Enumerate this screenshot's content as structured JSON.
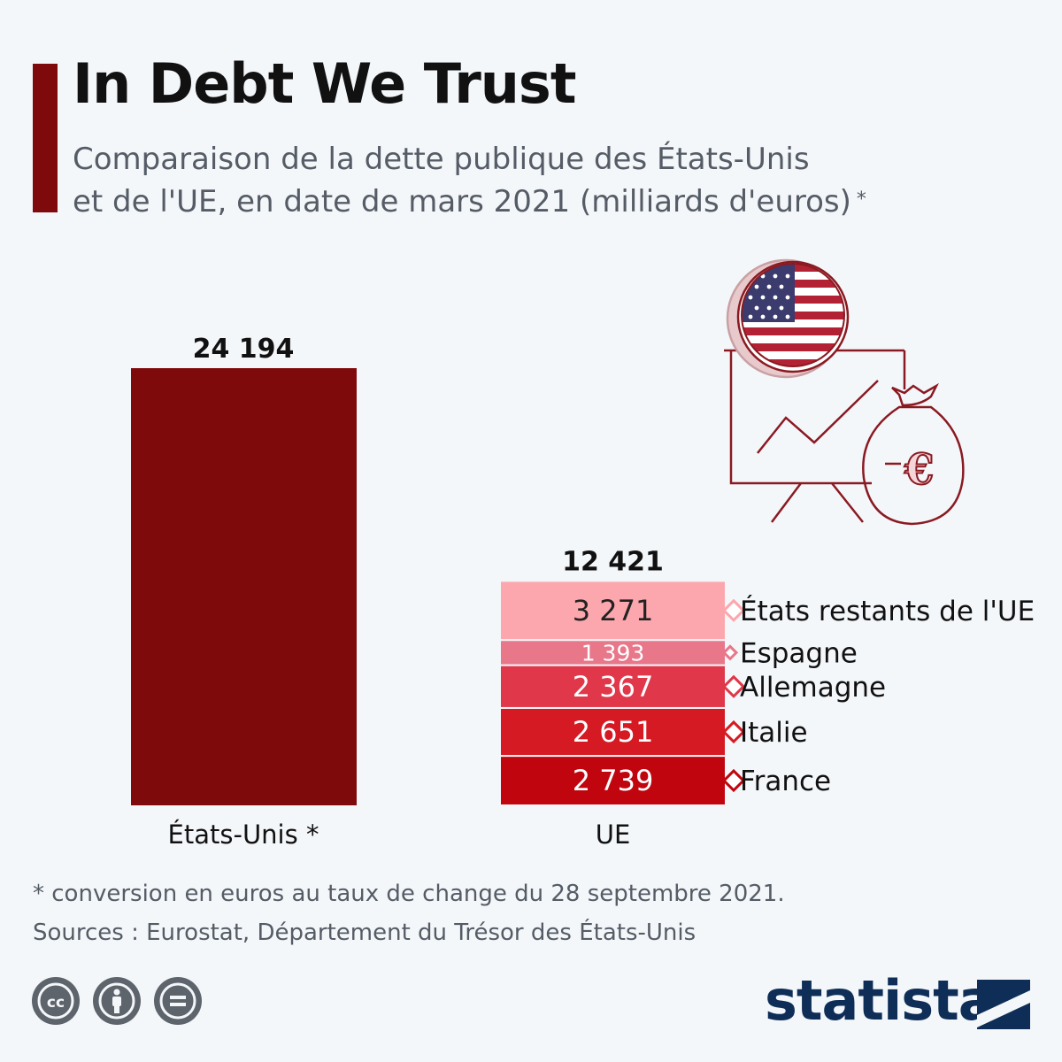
{
  "header": {
    "title": "In Debt We Trust",
    "subtitle_line1": "Comparaison de la dette publique des États-Unis",
    "subtitle_line2": "et de l'UE, en date de mars 2021 (milliards d'euros)",
    "subtitle_star": "*"
  },
  "chart_data": {
    "type": "bar",
    "stacked": true,
    "categories": [
      "États-Unis *",
      "UE"
    ],
    "totals": [
      "24 194",
      "12 421"
    ],
    "us_value": 24194,
    "us_value_label": "24 194",
    "eu_segments": [
      {
        "name": "France",
        "value": 2739,
        "label": "2 739",
        "color": "#c1050f"
      },
      {
        "name": "Italie",
        "value": 2651,
        "label": "2 651",
        "color": "#d51a23"
      },
      {
        "name": "Allemagne",
        "value": 2367,
        "label": "2 367",
        "color": "#e0374a"
      },
      {
        "name": "Espagne",
        "value": 1393,
        "label": "1 393",
        "color": "#e8778a"
      },
      {
        "name": "États restants de l'UE",
        "value": 3271,
        "label": "3 271",
        "color": "#fca7ad"
      }
    ],
    "us_color": "#7f0a0c",
    "grid": false,
    "legend": "right"
  },
  "footer": {
    "note": "* conversion en euros au taux de change du 28 septembre 2021.",
    "sources": "Sources : Eurostat, Département du Trésor des États-Unis",
    "brand": "statista"
  },
  "icons": {
    "license": [
      "creative-commons-icon",
      "attribution-icon",
      "no-derivatives-icon"
    ],
    "illustration": [
      "us-flag-icon",
      "chart-easel-icon",
      "money-bag-euro-icon"
    ]
  }
}
